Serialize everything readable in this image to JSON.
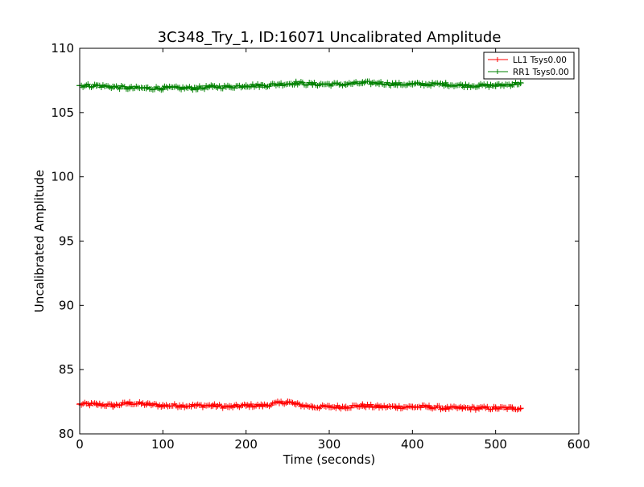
{
  "chart_data": {
    "type": "line",
    "title": "3C348_Try_1, ID:16071 Uncalibrated Amplitude",
    "xlabel": "Time (seconds)",
    "ylabel": "Uncalibrated Amplitude",
    "xlim": [
      0,
      600
    ],
    "ylim": [
      80,
      110
    ],
    "xticks": [
      0,
      100,
      200,
      300,
      400,
      500,
      600
    ],
    "yticks": [
      80,
      85,
      90,
      95,
      100,
      105,
      110
    ],
    "grid": false,
    "legend_position": "top-right",
    "series": [
      {
        "name": "LL1 Tsys0.00",
        "color": "#ff0000",
        "marker": "+",
        "x": [
          0,
          20,
          40,
          60,
          80,
          100,
          120,
          140,
          160,
          180,
          200,
          220,
          240,
          250,
          260,
          280,
          300,
          320,
          340,
          360,
          380,
          400,
          420,
          440,
          460,
          480,
          500,
          520,
          530
        ],
        "y": [
          82.3,
          82.3,
          82.2,
          82.4,
          82.3,
          82.2,
          82.2,
          82.2,
          82.2,
          82.1,
          82.2,
          82.2,
          82.4,
          82.5,
          82.3,
          82.1,
          82.1,
          82.1,
          82.2,
          82.1,
          82.1,
          82.1,
          82.1,
          82.0,
          82.0,
          82.0,
          82.0,
          82.0,
          82.0
        ]
      },
      {
        "name": "RR1 Tsys0.00",
        "color": "#008000",
        "marker": "+",
        "x": [
          0,
          20,
          40,
          60,
          80,
          100,
          120,
          140,
          160,
          180,
          200,
          220,
          240,
          260,
          280,
          300,
          320,
          340,
          360,
          380,
          400,
          420,
          440,
          460,
          480,
          500,
          520,
          530
        ],
        "y": [
          107.1,
          107.1,
          107.0,
          106.9,
          106.9,
          106.9,
          106.9,
          106.9,
          107.0,
          107.0,
          107.1,
          107.1,
          107.2,
          107.3,
          107.2,
          107.2,
          107.2,
          107.3,
          107.3,
          107.2,
          107.2,
          107.2,
          107.2,
          107.1,
          107.1,
          107.1,
          107.2,
          107.3
        ]
      }
    ]
  }
}
